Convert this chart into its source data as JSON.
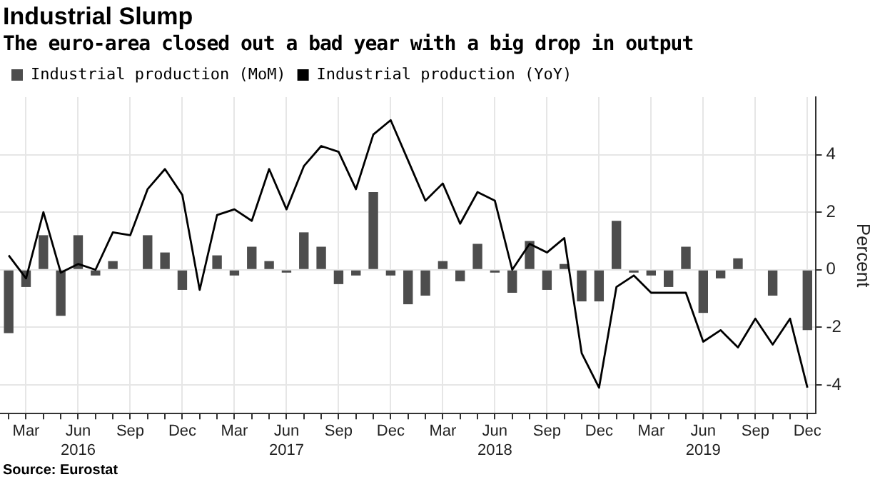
{
  "chart_data": {
    "type": "bar",
    "title": "Industrial Slump",
    "subtitle": "The euro-area closed out a bad year with a big drop in output",
    "ylabel": "Percent",
    "annotations": [
      "Source: Eurostat"
    ],
    "categories": [
      null,
      "Mar",
      null,
      null,
      "Jun\n2016",
      null,
      null,
      "Sep",
      null,
      null,
      "Dec",
      null,
      null,
      "Mar",
      null,
      null,
      "Jun\n2017",
      null,
      null,
      "Sep",
      null,
      null,
      "Dec",
      null,
      null,
      "Mar",
      null,
      null,
      "Jun\n2018",
      null,
      null,
      "Sep",
      null,
      null,
      "Dec",
      null,
      null,
      "Mar",
      null,
      null,
      "Jun\n2019",
      null,
      null,
      "Sep",
      null,
      null,
      "Dec"
    ],
    "series": [
      {
        "name": "Industrial production (MoM)",
        "color": "#4d4d4d",
        "values": [
          -2.2,
          -0.6,
          1.2,
          -1.6,
          1.2,
          -0.2,
          0.3,
          0.0,
          1.2,
          0.6,
          -0.7,
          0.0,
          0.5,
          -0.2,
          0.8,
          0.3,
          -0.1,
          1.3,
          0.8,
          -0.5,
          -0.2,
          2.7,
          -0.2,
          -1.2,
          -0.9,
          0.3,
          -0.4,
          0.9,
          -0.1,
          -0.8,
          1.0,
          -0.7,
          0.2,
          -1.1,
          -1.1,
          1.7,
          -0.1,
          -0.2,
          -0.6,
          0.8,
          -1.5,
          -0.3,
          0.4,
          0.0,
          -0.9,
          0.0,
          -2.1
        ]
      },
      {
        "name": "Industrial production (YoY)",
        "type": "line",
        "color": "#000000",
        "values": [
          0.5,
          -0.3,
          2.0,
          -0.1,
          0.2,
          0.0,
          1.3,
          1.2,
          2.8,
          3.5,
          2.6,
          -0.7,
          1.9,
          2.1,
          1.7,
          3.5,
          2.1,
          3.6,
          4.3,
          4.1,
          2.8,
          4.7,
          5.2,
          3.8,
          2.4,
          3.0,
          1.6,
          2.7,
          2.4,
          0.0,
          0.9,
          0.6,
          1.1,
          -2.9,
          -4.1,
          -0.6,
          -0.2,
          -0.8,
          -0.8,
          -0.8,
          -2.5,
          -2.1,
          -2.7,
          -1.7,
          -2.6,
          -1.7,
          -4.1
        ]
      }
    ],
    "ylim": [
      -5,
      6
    ],
    "yticks": [
      -4,
      -2,
      0,
      2,
      4
    ],
    "grid": true,
    "legend": "top left",
    "marker": "none",
    "line_style": "solid"
  }
}
